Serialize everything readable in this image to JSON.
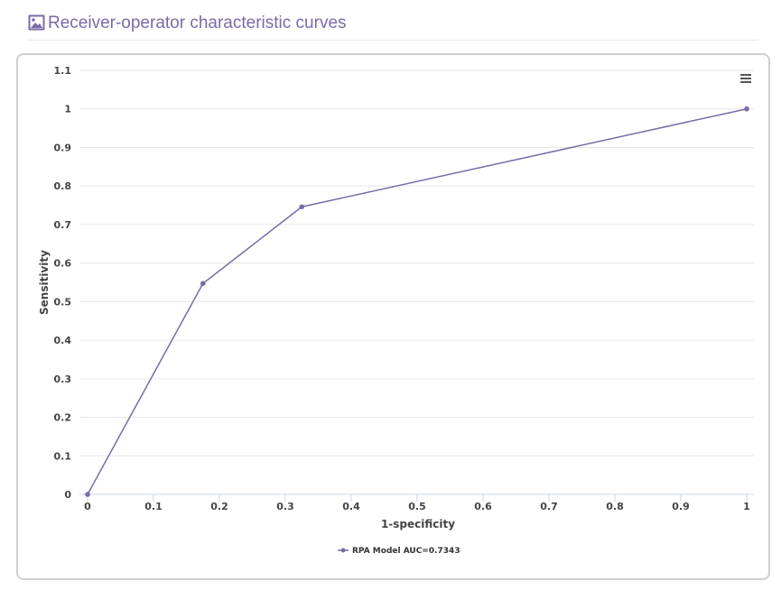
{
  "panel": {
    "title": "Receiver-operator characteristic curves",
    "icon": "image-icon",
    "menu_icon": "hamburger-menu-icon"
  },
  "colors": {
    "accent": "#7b6aa7",
    "series": "#7b6aa7",
    "grid": "#e6e6e6"
  },
  "chart_data": {
    "type": "line",
    "xlabel": "1-specificity",
    "ylabel": "Sensitivity",
    "xlim": [
      0,
      1
    ],
    "ylim": [
      0,
      1.1
    ],
    "x_ticks": [
      0,
      0.1,
      0.2,
      0.3,
      0.4,
      0.5,
      0.6,
      0.7,
      0.8,
      0.9,
      1
    ],
    "x_tick_labels": [
      "0",
      "0.1",
      "0.2",
      "0.3",
      "0.4",
      "0.5",
      "0.6",
      "0.7",
      "0.8",
      "0.9",
      "1"
    ],
    "y_ticks": [
      0,
      0.1,
      0.2,
      0.3,
      0.4,
      0.5,
      0.6,
      0.7,
      0.8,
      0.9,
      1,
      1.1
    ],
    "y_tick_labels": [
      "0",
      "0.1",
      "0.2",
      "0.3",
      "0.4",
      "0.5",
      "0.6",
      "0.7",
      "0.8",
      "0.9",
      "1",
      "1.1"
    ],
    "grid": true,
    "legend": "bottom-center",
    "series": [
      {
        "name": "RPA Model AUC=0.7343",
        "points": [
          {
            "x": 0,
            "y": 0
          },
          {
            "x": 0.175,
            "y": 0.547
          },
          {
            "x": 0.325,
            "y": 0.746
          },
          {
            "x": 1,
            "y": 1
          }
        ]
      }
    ]
  }
}
